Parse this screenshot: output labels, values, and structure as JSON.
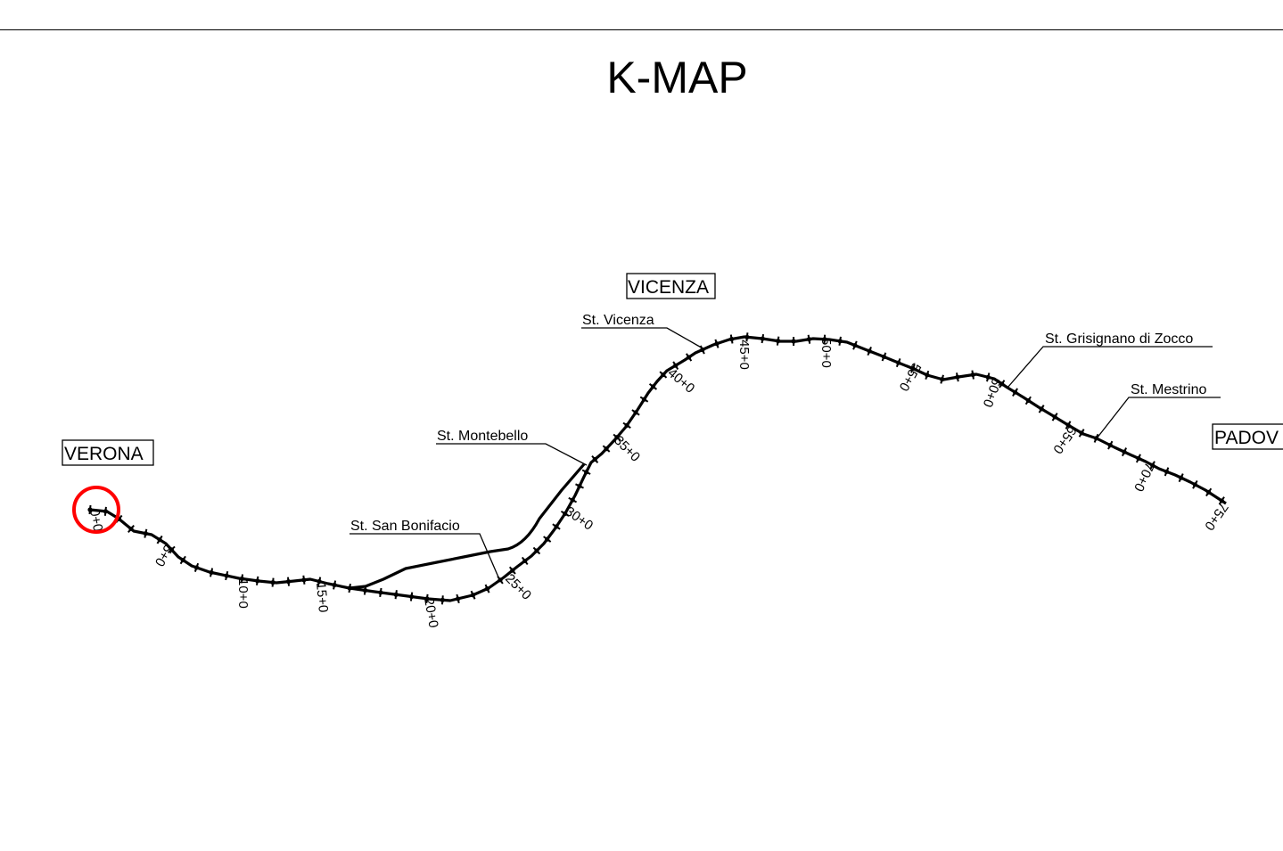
{
  "title": "K-MAP",
  "cities": [
    {
      "id": "verona",
      "label": "VERONA"
    },
    {
      "id": "vicenza",
      "label": "VICENZA"
    },
    {
      "id": "padova",
      "label": "PADOV"
    }
  ],
  "stations": [
    {
      "id": "vicenza",
      "label": "St. Vicenza"
    },
    {
      "id": "montebello",
      "label": "St. Montebello"
    },
    {
      "id": "san-bonifacio",
      "label": "St. San Bonifacio"
    },
    {
      "id": "grisignano",
      "label": "St. Grisignano di Zocco"
    },
    {
      "id": "mestrino",
      "label": "St. Mestrino"
    }
  ],
  "chainage_labels": [
    "0+0",
    "5+0",
    "10+0",
    "15+0",
    "20+0",
    "25+0",
    "30+0",
    "35+0",
    "40+0",
    "45+0",
    "50+0",
    "55+0",
    "60+0",
    "65+0",
    "70+0",
    "75+0"
  ],
  "colors": {
    "line": "#000000",
    "highlight": "#ff0000"
  }
}
